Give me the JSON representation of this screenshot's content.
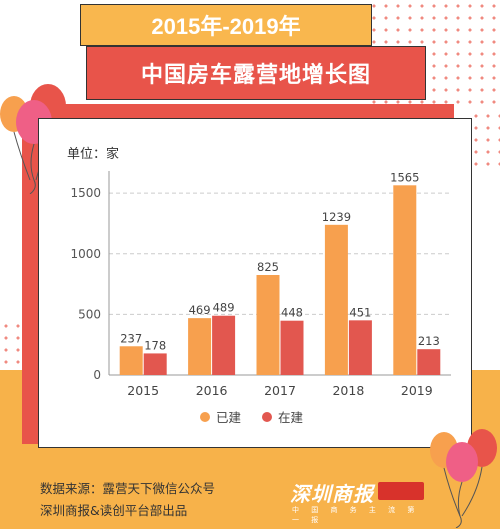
{
  "title_year": "2015年-2019年",
  "title_main": "中国房车露营地增长图",
  "unit_label": "单位：家",
  "source_line1": "数据来源：露营天下微信公众号",
  "source_line2": "深圳商报&读创平台部出品",
  "logo_text": "深圳商报",
  "logo_subtext": "中 国 商 务 主 流 第 一 报",
  "colors": {
    "built": "#f7a04e",
    "building": "#e2574f",
    "title_red": "#e8544a",
    "title_yellow": "#f9b74e",
    "band": "#f7b24a"
  },
  "chart_data": {
    "type": "bar",
    "categories": [
      "2015",
      "2016",
      "2017",
      "2018",
      "2019"
    ],
    "series": [
      {
        "name": "已建",
        "values": [
          237,
          469,
          825,
          1239,
          1565
        ]
      },
      {
        "name": "在建",
        "values": [
          178,
          489,
          448,
          451,
          213
        ]
      }
    ],
    "yticks": [
      0,
      500,
      1000,
      1500
    ],
    "ylim": [
      0,
      1650
    ],
    "grid": true,
    "legend": "bottom"
  }
}
